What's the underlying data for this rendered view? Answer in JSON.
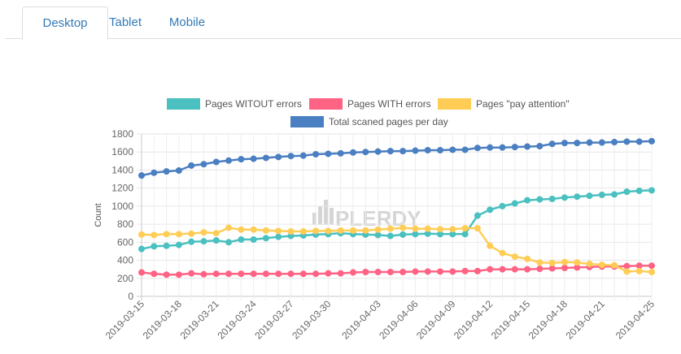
{
  "tabs": [
    {
      "label": "Desktop",
      "active": true
    },
    {
      "label": "Tablet",
      "active": false
    },
    {
      "label": "Mobile",
      "active": false
    }
  ],
  "watermark": "PLERDY",
  "chart_data": {
    "type": "line",
    "title": "",
    "xlabel": "",
    "ylabel": "Count",
    "ylim": [
      0,
      1800
    ],
    "yticks": [
      0,
      200,
      400,
      600,
      800,
      1000,
      1200,
      1400,
      1600,
      1800
    ],
    "grid": true,
    "legend_position": "top",
    "x": [
      "2019-03-15",
      "2019-03-16",
      "2019-03-17",
      "2019-03-18",
      "2019-03-19",
      "2019-03-20",
      "2019-03-21",
      "2019-03-22",
      "2019-03-23",
      "2019-03-24",
      "2019-03-25",
      "2019-03-26",
      "2019-03-27",
      "2019-03-28",
      "2019-03-29",
      "2019-03-30",
      "2019-03-31",
      "2019-04-01",
      "2019-04-02",
      "2019-04-03",
      "2019-04-04",
      "2019-04-05",
      "2019-04-06",
      "2019-04-07",
      "2019-04-08",
      "2019-04-09",
      "2019-04-10",
      "2019-04-11",
      "2019-04-12",
      "2019-04-13",
      "2019-04-14",
      "2019-04-15",
      "2019-04-16",
      "2019-04-17",
      "2019-04-18",
      "2019-04-19",
      "2019-04-20",
      "2019-04-21",
      "2019-04-22",
      "2019-04-23",
      "2019-04-24",
      "2019-04-25"
    ],
    "x_tick_labels": [
      "2019-03-15",
      "2019-03-18",
      "2019-03-21",
      "2019-03-24",
      "2019-03-27",
      "2019-03-30",
      "2019-04-03",
      "2019-04-06",
      "2019-04-09",
      "2019-04-12",
      "2019-04-15",
      "2019-04-18",
      "2019-04-21",
      "2019-04-25"
    ],
    "series": [
      {
        "name": "Pages WITOUT errors",
        "color": "#4bc0c0",
        "values": [
          525,
          555,
          560,
          570,
          605,
          610,
          620,
          600,
          630,
          630,
          645,
          660,
          670,
          675,
          685,
          690,
          700,
          690,
          685,
          680,
          670,
          685,
          690,
          695,
          690,
          690,
          690,
          895,
          960,
          1000,
          1030,
          1065,
          1075,
          1080,
          1095,
          1105,
          1115,
          1125,
          1130,
          1160,
          1170,
          1175
        ]
      },
      {
        "name": "Pages WITH errors",
        "color": "#ff6384",
        "values": [
          265,
          250,
          240,
          240,
          255,
          245,
          250,
          250,
          250,
          250,
          250,
          250,
          250,
          250,
          250,
          255,
          255,
          265,
          270,
          270,
          270,
          270,
          275,
          275,
          275,
          275,
          280,
          280,
          300,
          300,
          300,
          300,
          305,
          310,
          315,
          320,
          325,
          330,
          330,
          335,
          340,
          340
        ]
      },
      {
        "name": "Pages \"pay attention\"",
        "color": "#ffcd56",
        "values": [
          685,
          680,
          690,
          690,
          695,
          710,
          700,
          760,
          740,
          740,
          730,
          725,
          720,
          720,
          725,
          725,
          730,
          730,
          730,
          740,
          750,
          760,
          750,
          750,
          745,
          745,
          755,
          755,
          560,
          480,
          440,
          415,
          375,
          370,
          380,
          375,
          360,
          350,
          345,
          275,
          280,
          270
        ]
      },
      {
        "name": "Total scaned pages per day",
        "color": "#4a7fc1",
        "values": [
          1340,
          1370,
          1385,
          1395,
          1450,
          1465,
          1490,
          1505,
          1520,
          1525,
          1535,
          1545,
          1555,
          1560,
          1575,
          1580,
          1585,
          1595,
          1600,
          1605,
          1610,
          1610,
          1615,
          1620,
          1620,
          1625,
          1625,
          1645,
          1650,
          1650,
          1655,
          1660,
          1665,
          1690,
          1700,
          1700,
          1705,
          1705,
          1710,
          1715,
          1715,
          1720
        ]
      }
    ]
  }
}
